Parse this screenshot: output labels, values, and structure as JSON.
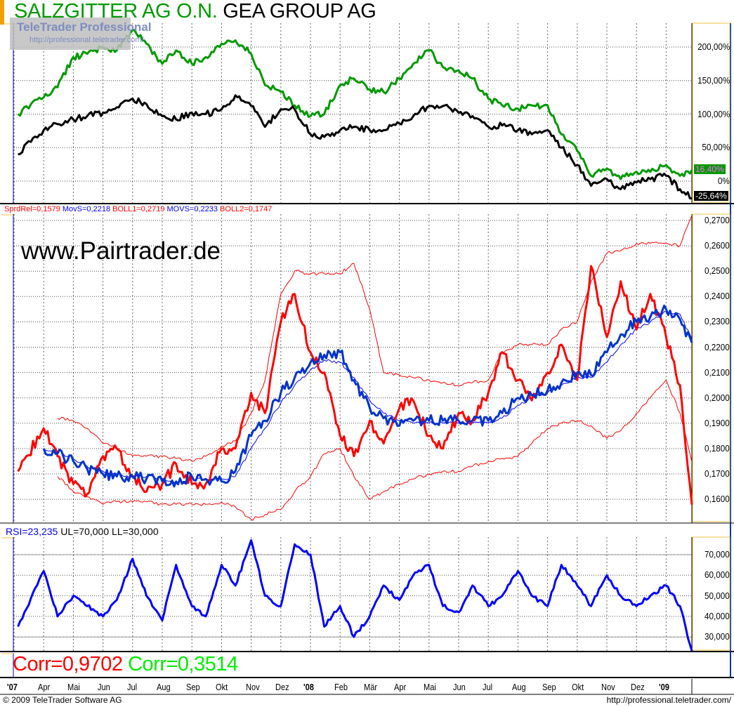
{
  "header": {
    "title_1": "SALZGITTER AG O.N.",
    "title_2": "GEA GROUP AG"
  },
  "watermark": {
    "line1": "TeleTrader Professional",
    "line2": "http://professional.teletrader.com/"
  },
  "spread_legend": [
    {
      "text": "SprdRel=0,1579",
      "color": "#ff0000"
    },
    {
      "text": "MovS=0,2218",
      "color": "#0000ff"
    },
    {
      "text": "BOLL1=0,2719",
      "color": "#ff0000"
    },
    {
      "text": "MOVS=0,2233",
      "color": "#0000ff"
    },
    {
      "text": "BOLL2=0,1747",
      "color": "#ff0000"
    }
  ],
  "rsi_legend": [
    {
      "text": "RSI=23,235",
      "color": "#0000ff"
    },
    {
      "text": "UL=70,000",
      "color": "#000000"
    },
    {
      "text": "LL=30,000",
      "color": "#000000"
    }
  ],
  "overlay_text": "www.Pairtrader.de",
  "corr": [
    {
      "text": "Corr=0,9702",
      "color": "#ff0000"
    },
    {
      "text": "Corr=0,3514",
      "color": "#00ee00"
    }
  ],
  "footer": {
    "left": "© 2009 TeleTrader Software AG",
    "right": "http://professional.teletrader.com/"
  },
  "chart_data": [
    {
      "type": "line",
      "title": "SALZGITTER AG O.N. GEA GROUP AG",
      "ylabel": "",
      "yticks": [
        "200,00%",
        "150,00%",
        "100,00%",
        "50,00%",
        "0%"
      ],
      "ytick_values": [
        200,
        150,
        100,
        50,
        0
      ],
      "ylim": [
        -30,
        230
      ],
      "grid": true,
      "last_value_badges": [
        {
          "text": "16,40%",
          "value": 16.4,
          "bg": "#009900",
          "fg": "#ff66ff"
        },
        {
          "text": "-25,64%",
          "value": -25.64,
          "bg": "#000000",
          "fg": "#ffffff"
        }
      ],
      "series": [
        {
          "name": "SALZGITTER AG O.N.",
          "color": "#009900",
          "values": [
            100,
            125,
            140,
            185,
            190,
            200,
            195,
            225,
            205,
            175,
            195,
            175,
            185,
            205,
            210,
            190,
            143,
            133,
            113,
            97,
            100,
            143,
            153,
            137,
            133,
            153,
            175,
            195,
            170,
            165,
            153,
            123,
            113,
            108,
            113,
            113,
            70,
            45,
            8,
            19,
            3,
            14,
            14,
            24,
            8,
            16.4
          ]
        },
        {
          "name": "GEA GROUP AG",
          "color": "#000000",
          "values": [
            40,
            76,
            85,
            92,
            97,
            102,
            110,
            123,
            115,
            97,
            92,
            102,
            100,
            107,
            128,
            112,
            81,
            107,
            107,
            70,
            66,
            76,
            81,
            76,
            76,
            86,
            97,
            112,
            112,
            102,
            97,
            81,
            83,
            76,
            70,
            76,
            50,
            24,
            -7,
            3,
            -12,
            -2,
            3,
            8,
            -12,
            -25.64
          ]
        }
      ]
    },
    {
      "type": "line",
      "yticks": [
        "0,2700",
        "0,2600",
        "0,2500",
        "0,2400",
        "0,2300",
        "0,2200",
        "0,2100",
        "0,2000",
        "0,1900",
        "0,1800",
        "0,1700",
        "0,1600"
      ],
      "ytick_values": [
        0.27,
        0.26,
        0.25,
        0.24,
        0.23,
        0.22,
        0.21,
        0.2,
        0.19,
        0.18,
        0.17,
        0.16
      ],
      "ylim": [
        0.1515,
        0.2725
      ],
      "grid": true,
      "series": [
        {
          "name": "BOLL1",
          "color": "#ff0000",
          "width": 1,
          "values": [
            null,
            null,
            0.192,
            0.191,
            0.188,
            0.182,
            0.18,
            0.177,
            0.177,
            0.177,
            0.176,
            0.175,
            0.177,
            0.181,
            0.183,
            0.194,
            0.207,
            0.241,
            0.25,
            0.249,
            0.249,
            0.249,
            0.253,
            0.235,
            0.21,
            0.209,
            0.208,
            0.207,
            0.206,
            0.205,
            0.206,
            0.207,
            0.218,
            0.221,
            0.221,
            0.221,
            0.227,
            0.23,
            0.246,
            0.257,
            0.258,
            0.261,
            0.261,
            0.261,
            0.26,
            0.2719
          ]
        },
        {
          "name": "BOLL2",
          "color": "#ff0000",
          "width": 1,
          "values": [
            null,
            null,
            0.169,
            0.163,
            0.161,
            0.158,
            0.159,
            0.159,
            0.159,
            0.158,
            0.158,
            0.158,
            0.158,
            0.159,
            0.157,
            0.152,
            0.154,
            0.156,
            0.163,
            0.169,
            0.178,
            0.18,
            0.169,
            0.16,
            0.163,
            0.166,
            0.168,
            0.17,
            0.171,
            0.171,
            0.173,
            0.175,
            0.176,
            0.177,
            0.182,
            0.188,
            0.19,
            0.191,
            0.189,
            0.184,
            0.187,
            0.194,
            0.2,
            0.207,
            0.194,
            0.1747
          ]
        },
        {
          "name": "MOVS",
          "color": "#0000ff",
          "width": 1,
          "values": [
            null,
            0.18,
            0.179,
            0.176,
            0.173,
            0.171,
            0.17,
            0.169,
            0.169,
            0.168,
            0.167,
            0.168,
            0.168,
            0.168,
            0.169,
            0.18,
            0.188,
            0.198,
            0.205,
            0.211,
            0.215,
            0.214,
            0.208,
            0.199,
            0.194,
            0.191,
            0.19,
            0.19,
            0.19,
            0.19,
            0.19,
            0.19,
            0.192,
            0.197,
            0.2,
            0.202,
            0.205,
            0.208,
            0.208,
            0.214,
            0.221,
            0.227,
            0.23,
            0.234,
            0.233,
            0.2233
          ]
        },
        {
          "name": "SprdRel",
          "color": "#ff0000",
          "width": 3,
          "values": [
            0.171,
            0.188,
            0.177,
            0.166,
            0.162,
            0.177,
            0.18,
            0.169,
            0.163,
            0.166,
            0.174,
            0.166,
            0.166,
            0.18,
            0.18,
            0.202,
            0.194,
            0.23,
            0.241,
            0.218,
            0.21,
            0.185,
            0.177,
            0.191,
            0.182,
            0.196,
            0.199,
            0.185,
            0.18,
            0.194,
            0.191,
            0.202,
            0.218,
            0.207,
            0.199,
            0.21,
            0.221,
            0.207,
            0.252,
            0.224,
            0.246,
            0.227,
            0.241,
            0.224,
            0.205,
            0.1579
          ]
        },
        {
          "name": "MovS",
          "color": "#0033cc",
          "width": 3,
          "values": [
            null,
            0.18,
            0.178,
            0.175,
            0.172,
            0.17,
            0.169,
            0.169,
            0.168,
            0.167,
            0.167,
            0.169,
            0.168,
            0.167,
            0.171,
            0.185,
            0.191,
            0.202,
            0.208,
            0.214,
            0.217,
            0.218,
            0.207,
            0.196,
            0.192,
            0.189,
            0.191,
            0.191,
            0.191,
            0.191,
            0.191,
            0.191,
            0.194,
            0.2,
            0.201,
            0.203,
            0.206,
            0.21,
            0.209,
            0.218,
            0.225,
            0.23,
            0.232,
            0.235,
            0.231,
            0.2218
          ]
        }
      ]
    },
    {
      "type": "line",
      "yticks": [
        "70,000",
        "60,000",
        "50,000",
        "40,000",
        "30,000"
      ],
      "ytick_values": [
        70,
        60,
        50,
        40,
        30
      ],
      "ylim": [
        22,
        78
      ],
      "grid": true,
      "reference_lines": [
        70,
        30
      ],
      "series": [
        {
          "name": "RSI",
          "color": "#0000ff",
          "width": 3,
          "values": [
            35,
            62,
            40,
            50,
            45,
            40,
            48,
            68,
            50,
            38,
            65,
            45,
            40,
            65,
            55,
            77,
            50,
            45,
            75,
            70,
            35,
            45,
            30,
            40,
            55,
            48,
            60,
            65,
            45,
            42,
            55,
            45,
            50,
            62,
            50,
            45,
            65,
            55,
            45,
            60,
            50,
            45,
            50,
            55,
            45,
            23.235
          ]
        }
      ]
    }
  ],
  "dates": [
    "2007-03-05",
    "2007-04-01",
    "2007-04-15",
    "2007-05-01",
    "2007-05-15",
    "2007-06-01",
    "2007-06-15",
    "2007-07-01",
    "2007-07-15",
    "2007-08-01",
    "2007-08-15",
    "2007-09-01",
    "2007-09-15",
    "2007-10-01",
    "2007-10-15",
    "2007-11-01",
    "2007-11-15",
    "2007-12-01",
    "2007-12-15",
    "2008-01-01",
    "2008-01-15",
    "2008-02-01",
    "2008-02-15",
    "2008-03-01",
    "2008-03-15",
    "2008-04-01",
    "2008-04-15",
    "2008-05-01",
    "2008-05-15",
    "2008-06-01",
    "2008-06-15",
    "2008-07-01",
    "2008-07-15",
    "2008-08-01",
    "2008-08-15",
    "2008-09-01",
    "2008-09-15",
    "2008-10-01",
    "2008-10-15",
    "2008-11-01",
    "2008-11-15",
    "2008-12-01",
    "2008-12-15",
    "2009-01-01",
    "2009-01-15",
    "2009-01-27"
  ],
  "x_axis_labels": [
    {
      "text": "'07",
      "date": "2007-03-01",
      "bold": true
    },
    {
      "text": "Apr",
      "date": "2007-04-01"
    },
    {
      "text": "Mai",
      "date": "2007-05-01"
    },
    {
      "text": "Jun",
      "date": "2007-06-01"
    },
    {
      "text": "Jul",
      "date": "2007-07-01"
    },
    {
      "text": "Aug",
      "date": "2007-08-01"
    },
    {
      "text": "Sep",
      "date": "2007-09-01"
    },
    {
      "text": "Okt",
      "date": "2007-10-01"
    },
    {
      "text": "Nov",
      "date": "2007-11-01"
    },
    {
      "text": "Dez",
      "date": "2007-12-01"
    },
    {
      "text": "'08",
      "date": "2008-01-01",
      "bold": true
    },
    {
      "text": "Feb",
      "date": "2008-02-01"
    },
    {
      "text": "Mär",
      "date": "2008-03-01"
    },
    {
      "text": "Apr",
      "date": "2008-04-01"
    },
    {
      "text": "Mai",
      "date": "2008-05-01"
    },
    {
      "text": "Jun",
      "date": "2008-06-01"
    },
    {
      "text": "Jul",
      "date": "2008-07-01"
    },
    {
      "text": "Aug",
      "date": "2008-08-01"
    },
    {
      "text": "Sep",
      "date": "2008-09-01"
    },
    {
      "text": "Okt",
      "date": "2008-10-01"
    },
    {
      "text": "Nov",
      "date": "2008-11-01"
    },
    {
      "text": "Dez",
      "date": "2008-12-01"
    },
    {
      "text": "'09",
      "date": "2009-01-01",
      "bold": true
    }
  ]
}
